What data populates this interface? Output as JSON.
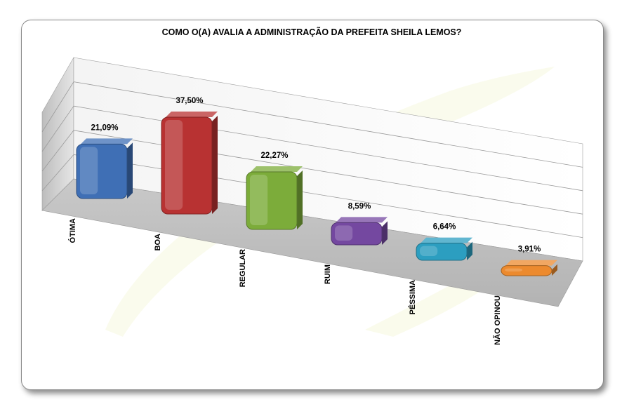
{
  "chart_data": {
    "type": "bar",
    "title": "COMO O(A) AVALIA A ADMINISTRAÇÃO DA PREFEITA SHEILA LEMOS?",
    "categories": [
      "ÓTIMA",
      "BOA",
      "REGULAR",
      "RUIM",
      "PÉSSIMA",
      "NÃO OPINOU"
    ],
    "values": [
      21.09,
      37.5,
      22.27,
      8.59,
      6.64,
      3.91
    ],
    "value_labels": [
      "21,09%",
      "37,50%",
      "22,27%",
      "8,59%",
      "6,64%",
      "3,91%"
    ],
    "colors": [
      "#3f6fb5",
      "#b83232",
      "#7cac3a",
      "#7448a0",
      "#2c9ec0",
      "#ec8a2e"
    ],
    "grid": true,
    "legend": "none",
    "style": "3d"
  }
}
